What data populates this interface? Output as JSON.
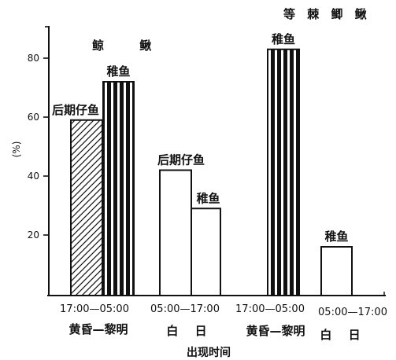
{
  "chart_data": {
    "type": "bar",
    "xlabel": "出现时间",
    "ylabel": "(%)",
    "ylim": [
      0,
      90
    ],
    "yticks": [
      20,
      40,
      60,
      80
    ],
    "grid": false,
    "species": [
      {
        "name": "鲸 鳅",
        "periods": [
          {
            "time": "17:00—05:00",
            "label": "黄昏—黎明",
            "bars": [
              {
                "name": "后期仔鱼",
                "value": 59,
                "fill": "hatched"
              },
              {
                "name": "稚鱼",
                "value": 72,
                "fill": "striped"
              }
            ]
          },
          {
            "time": "05:00—17:00",
            "label": "白 日",
            "bars": [
              {
                "name": "后期仔鱼",
                "value": 42,
                "fill": "open"
              },
              {
                "name": "稚鱼",
                "value": 29,
                "fill": "open"
              }
            ]
          }
        ]
      },
      {
        "name": "等 棘 鲫 鳅",
        "periods": [
          {
            "time": "17:00—05:00",
            "label": "黄昏—黎明",
            "bars": [
              {
                "name": "稚鱼",
                "value": 83,
                "fill": "striped"
              }
            ]
          },
          {
            "time": "05:00—17:00",
            "label": "白 日",
            "bars": [
              {
                "name": "稚鱼",
                "value": 16,
                "fill": "open"
              }
            ]
          }
        ]
      }
    ]
  }
}
